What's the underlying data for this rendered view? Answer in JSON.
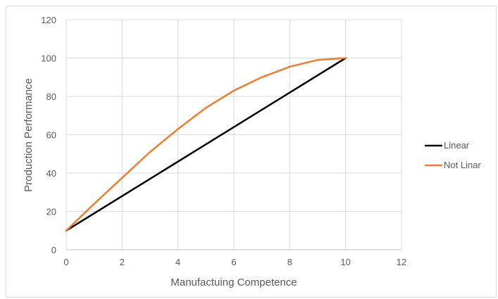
{
  "chart_data": {
    "type": "line",
    "title": "",
    "xlabel": "Manufactuing Competence",
    "ylabel": "Production Performance",
    "xlim": [
      0,
      12
    ],
    "ylim": [
      0,
      120
    ],
    "x_ticks": [
      0,
      2,
      4,
      6,
      8,
      10,
      12
    ],
    "y_ticks": [
      0,
      20,
      40,
      60,
      80,
      100,
      120
    ],
    "grid": true,
    "legend_position": "right",
    "series": [
      {
        "name": "Linear",
        "color": "#000000",
        "x": [
          0,
          10
        ],
        "y": [
          10,
          100
        ]
      },
      {
        "name": "Not Linar",
        "color": "#ED7D31",
        "x": [
          0,
          1,
          2,
          3,
          4,
          5,
          6,
          7,
          8,
          9,
          10
        ],
        "y": [
          10,
          24,
          37.5,
          51,
          63,
          74,
          83,
          90,
          95.5,
          99,
          100
        ]
      }
    ]
  }
}
